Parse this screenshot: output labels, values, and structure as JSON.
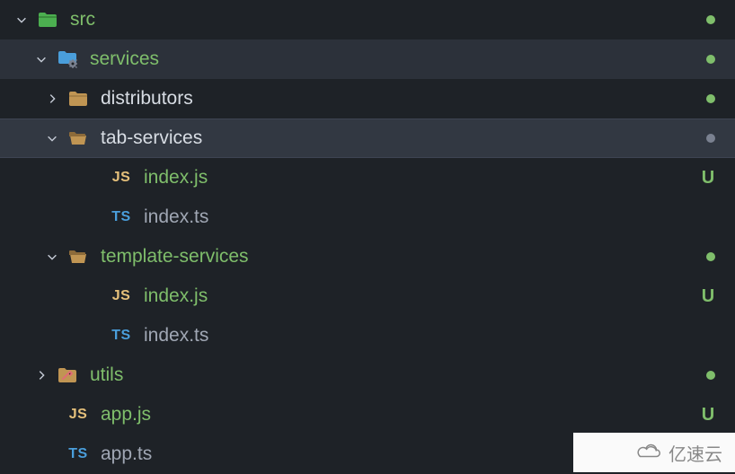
{
  "tree": {
    "items": [
      {
        "name": "src",
        "level": 0,
        "kind": "folder-src",
        "expanded": true,
        "labelColor": "green",
        "status": "dot-green"
      },
      {
        "name": "services",
        "level": 1,
        "kind": "folder-services",
        "expanded": true,
        "labelColor": "green",
        "status": "dot-green",
        "rowState": "selected"
      },
      {
        "name": "distributors",
        "level": 2,
        "kind": "folder",
        "expanded": false,
        "labelColor": "white",
        "status": "dot-green"
      },
      {
        "name": "tab-services",
        "level": 2,
        "kind": "folder",
        "expanded": true,
        "labelColor": "white",
        "status": "dot-gray",
        "rowState": "hovered"
      },
      {
        "name": "index.js",
        "level": 3,
        "kind": "js",
        "labelColor": "green",
        "status": "U"
      },
      {
        "name": "index.ts",
        "level": 3,
        "kind": "ts",
        "labelColor": "gray",
        "status": ""
      },
      {
        "name": "template-services",
        "level": 2,
        "kind": "folder",
        "expanded": true,
        "labelColor": "green",
        "status": "dot-green"
      },
      {
        "name": "index.js",
        "level": 3,
        "kind": "js",
        "labelColor": "green",
        "status": "U"
      },
      {
        "name": "index.ts",
        "level": 3,
        "kind": "ts",
        "labelColor": "gray",
        "status": ""
      },
      {
        "name": "utils",
        "level": 1,
        "kind": "folder-utils",
        "expanded": false,
        "labelColor": "green",
        "status": "dot-green"
      },
      {
        "name": "app.js",
        "level": 2,
        "kind": "js",
        "labelColor": "green",
        "status": "U",
        "noTwistie": true
      },
      {
        "name": "app.ts",
        "level": 2,
        "kind": "ts",
        "labelColor": "gray",
        "status": "",
        "noTwistie": true
      }
    ]
  },
  "watermark": {
    "text": "亿速云"
  },
  "colors": {
    "bg": "#1e2227",
    "selected": "#2c313a",
    "hovered": "#323842",
    "green": "#7fbe6b",
    "white": "#d7dce3",
    "gray": "#a0a7b4",
    "js": "#e5c07b",
    "ts": "#4a9edb",
    "folderFill": "#c09553",
    "folderSrcFill": "#4caf50",
    "utilsFill": "#c09553",
    "utilsAccent": "#e06c75",
    "dotGreen": "#7fbe6b",
    "dotGray": "#7a8190"
  }
}
